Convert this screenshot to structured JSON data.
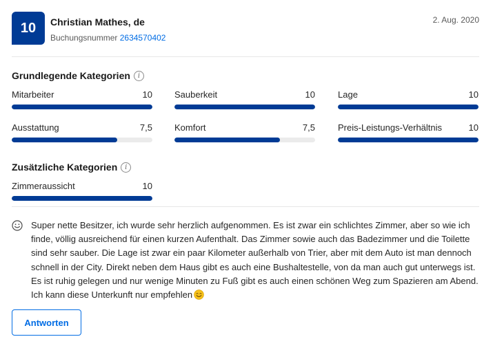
{
  "review": {
    "score": "10",
    "reviewer_name": "Christian Mathes, de",
    "booking_label": "Buchungsnummer",
    "booking_number": "2634570402",
    "date": "2. Aug. 2020"
  },
  "basic_categories": {
    "title": "Grundlegende Kategorien",
    "info_icon": "info-icon",
    "items": [
      {
        "label": "Mitarbeiter",
        "value": "10",
        "fraction": 1.0
      },
      {
        "label": "Sauberkeit",
        "value": "10",
        "fraction": 1.0
      },
      {
        "label": "Lage",
        "value": "10",
        "fraction": 1.0
      },
      {
        "label": "Ausstattung",
        "value": "7,5",
        "fraction": 0.75
      },
      {
        "label": "Komfort",
        "value": "7,5",
        "fraction": 0.75
      },
      {
        "label": "Preis-Leistungs-Verhältnis",
        "value": "10",
        "fraction": 1.0
      }
    ]
  },
  "additional_categories": {
    "title": "Zusätzliche Kategorien",
    "info_icon": "info-icon",
    "items": [
      {
        "label": "Zimmeraussicht",
        "value": "10",
        "fraction": 1.0
      }
    ]
  },
  "review_body": {
    "icon": "smile-icon",
    "text": "Super nette Besitzer, ich wurde sehr herzlich aufgenommen. Es ist zwar ein schlichtes Zimmer, aber so wie ich finde, völlig ausreichend für einen kurzen Aufenthalt. Das Zimmer sowie auch das Badezimmer und die Toilette sind sehr sauber. Die Lage ist zwar ein paar Kilometer außerhalb von Trier, aber mit dem Auto ist man dennoch schnell in der City. Direkt neben dem Haus gibt es auch eine Bushaltestelle, von da man auch gut unterwegs ist. Es ist ruhig gelegen und nur wenige Minuten zu Fuß gibt es auch einen schönen Weg zum Spazieren am Abend. Ich kann diese Unterkunft nur empfehlen",
    "trailing_emoji": "smiling-face-emoji"
  },
  "actions": {
    "reply_label": "Antworten"
  },
  "colors": {
    "brand_blue": "#003b95",
    "link_blue": "#006ce4",
    "bar_track": "#ebebeb"
  }
}
